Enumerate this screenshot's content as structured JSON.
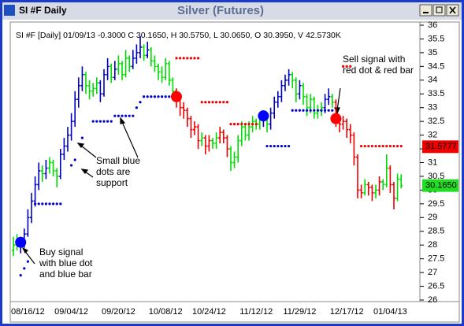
{
  "window_title": "SI #F Daily",
  "chart_data": {
    "type": "ohlc",
    "title": "Silver (Futures)",
    "info": "SI #F [Daily] 01/09/13 -0.3000 C 30.1650, H 30.5750, L 30.0650, O 30.3950, V 42.5730K",
    "ylim": [
      26,
      36
    ],
    "yticks": [
      26,
      26.5,
      27,
      27.5,
      28,
      28.5,
      29,
      29.5,
      30,
      30.5,
      31,
      31.5,
      32,
      32.5,
      33,
      33.5,
      34,
      34.5,
      35,
      35.5,
      36
    ],
    "grid": false,
    "categories": [
      null,
      null,
      null,
      null,
      "08/16/12",
      null,
      null,
      null,
      null,
      null,
      null,
      null,
      null,
      null,
      null,
      null,
      "09/04/12",
      null,
      null,
      null,
      null,
      null,
      null,
      null,
      null,
      null,
      null,
      null,
      null,
      "09/20/12",
      null,
      null,
      null,
      null,
      null,
      null,
      null,
      null,
      null,
      null,
      null,
      null,
      "10/08/12",
      null,
      null,
      null,
      null,
      null,
      null,
      null,
      null,
      null,
      null,
      null,
      "10/24/12",
      null,
      null,
      null,
      null,
      null,
      null,
      null,
      null,
      null,
      null,
      null,
      null,
      "11/12/12",
      null,
      null,
      null,
      null,
      null,
      null,
      null,
      null,
      null,
      null,
      null,
      "11/29/12",
      null,
      null,
      null,
      null,
      null,
      null,
      null,
      null,
      null,
      null,
      null,
      null,
      "12/17/12",
      null,
      null,
      null,
      null,
      null,
      null,
      null,
      null,
      null,
      null,
      null,
      "01/04/13",
      null,
      null,
      null
    ],
    "ohlc": [
      [
        27.8,
        28.3,
        27.6,
        28.0
      ],
      [
        28.0,
        28.4,
        27.8,
        28.1
      ],
      [
        28.1,
        28.3,
        27.7,
        28.0
      ],
      [
        28.0,
        28.6,
        27.9,
        28.4
      ],
      [
        28.4,
        29.3,
        28.3,
        29.0
      ],
      [
        29.0,
        29.9,
        28.8,
        29.6
      ],
      [
        29.6,
        30.5,
        29.4,
        30.2
      ],
      [
        30.2,
        31.0,
        30.0,
        30.7
      ],
      [
        30.7,
        30.9,
        30.3,
        30.6
      ],
      [
        30.6,
        31.1,
        30.4,
        30.8
      ],
      [
        30.8,
        31.2,
        30.6,
        31.0
      ],
      [
        31.0,
        31.1,
        30.5,
        30.7
      ],
      [
        30.7,
        30.8,
        30.1,
        30.5
      ],
      [
        30.5,
        31.5,
        30.4,
        31.3
      ],
      [
        31.3,
        31.9,
        31.1,
        31.6
      ],
      [
        31.6,
        32.3,
        31.4,
        32.0
      ],
      [
        32.0,
        32.8,
        31.8,
        32.5
      ],
      [
        32.5,
        33.6,
        32.3,
        33.3
      ],
      [
        33.3,
        34.1,
        33.0,
        33.8
      ],
      [
        33.8,
        34.5,
        33.6,
        34.2
      ],
      [
        34.2,
        34.3,
        33.5,
        33.8
      ],
      [
        33.8,
        34.0,
        33.3,
        33.6
      ],
      [
        33.6,
        33.9,
        33.4,
        33.7
      ],
      [
        33.7,
        34.1,
        33.5,
        33.9
      ],
      [
        33.9,
        34.0,
        33.2,
        33.5
      ],
      [
        33.5,
        34.4,
        33.4,
        34.2
      ],
      [
        34.2,
        34.8,
        34.0,
        34.5
      ],
      [
        34.5,
        34.6,
        33.9,
        34.1
      ],
      [
        34.1,
        34.7,
        34.0,
        34.4
      ],
      [
        34.4,
        34.9,
        34.2,
        34.6
      ],
      [
        34.6,
        34.7,
        34.0,
        34.2
      ],
      [
        34.2,
        35.1,
        34.1,
        34.8
      ],
      [
        34.8,
        34.9,
        34.3,
        34.5
      ],
      [
        34.5,
        35.1,
        34.4,
        34.8
      ],
      [
        34.8,
        35.3,
        34.6,
        35.0
      ],
      [
        35.0,
        35.6,
        34.8,
        35.2
      ],
      [
        35.2,
        35.3,
        34.7,
        34.9
      ],
      [
        34.9,
        35.4,
        34.8,
        35.1
      ],
      [
        35.1,
        35.2,
        34.5,
        34.7
      ],
      [
        34.7,
        34.9,
        34.3,
        34.5
      ],
      [
        34.5,
        34.6,
        34.0,
        34.3
      ],
      [
        34.3,
        34.5,
        33.9,
        34.1
      ],
      [
        34.1,
        34.8,
        34.0,
        34.6
      ],
      [
        34.6,
        34.7,
        33.8,
        34.0
      ],
      [
        34.0,
        34.1,
        33.4,
        33.6
      ],
      [
        33.6,
        33.7,
        33.0,
        33.3
      ],
      [
        33.3,
        33.4,
        32.7,
        33.0
      ],
      [
        33.0,
        33.2,
        32.6,
        32.9
      ],
      [
        32.9,
        33.0,
        32.3,
        32.6
      ],
      [
        32.6,
        32.7,
        31.9,
        32.2
      ],
      [
        32.2,
        32.5,
        32.0,
        32.3
      ],
      [
        32.3,
        32.4,
        31.5,
        31.8
      ],
      [
        31.8,
        32.1,
        31.6,
        31.9
      ],
      [
        31.9,
        32.0,
        31.3,
        31.6
      ],
      [
        31.6,
        32.0,
        31.4,
        31.8
      ],
      [
        31.8,
        31.9,
        31.5,
        31.7
      ],
      [
        31.7,
        32.1,
        31.5,
        31.9
      ],
      [
        31.9,
        32.3,
        31.7,
        32.1
      ],
      [
        32.1,
        32.2,
        31.7,
        31.9
      ],
      [
        31.9,
        32.0,
        31.2,
        31.5
      ],
      [
        31.5,
        31.6,
        30.7,
        31.0
      ],
      [
        31.0,
        31.4,
        30.8,
        31.2
      ],
      [
        31.2,
        32.0,
        31.0,
        31.8
      ],
      [
        31.8,
        32.5,
        31.6,
        32.3
      ],
      [
        32.3,
        32.4,
        31.8,
        32.0
      ],
      [
        32.0,
        32.5,
        31.8,
        32.3
      ],
      [
        32.3,
        32.7,
        32.1,
        32.5
      ],
      [
        32.5,
        32.6,
        32.2,
        32.4
      ],
      [
        32.4,
        32.8,
        32.2,
        32.6
      ],
      [
        32.6,
        32.9,
        32.3,
        32.6
      ],
      [
        32.6,
        32.7,
        32.1,
        32.4
      ],
      [
        32.4,
        33.0,
        32.2,
        32.8
      ],
      [
        32.8,
        33.4,
        32.6,
        33.2
      ],
      [
        33.2,
        33.6,
        33.0,
        33.4
      ],
      [
        33.4,
        34.0,
        33.2,
        33.8
      ],
      [
        33.8,
        34.2,
        33.6,
        34.0
      ],
      [
        34.0,
        34.4,
        33.8,
        34.2
      ],
      [
        34.2,
        34.3,
        33.7,
        34.0
      ],
      [
        34.0,
        34.1,
        33.2,
        33.5
      ],
      [
        33.5,
        34.0,
        33.3,
        33.8
      ],
      [
        33.8,
        33.9,
        33.1,
        33.4
      ],
      [
        33.4,
        33.5,
        32.7,
        33.0
      ],
      [
        33.0,
        33.5,
        32.8,
        33.3
      ],
      [
        33.3,
        33.4,
        32.6,
        32.8
      ],
      [
        32.8,
        33.1,
        32.6,
        32.9
      ],
      [
        32.9,
        33.2,
        32.7,
        33.0
      ],
      [
        33.0,
        33.5,
        32.8,
        33.3
      ],
      [
        33.3,
        33.7,
        33.1,
        33.4
      ],
      [
        33.4,
        33.5,
        33.0,
        33.2
      ],
      [
        33.2,
        33.3,
        32.3,
        32.6
      ],
      [
        32.6,
        32.7,
        32.1,
        32.4
      ],
      [
        32.4,
        32.7,
        32.2,
        32.5
      ],
      [
        32.5,
        32.6,
        31.9,
        32.2
      ],
      [
        32.2,
        32.4,
        31.7,
        32.0
      ],
      [
        32.0,
        32.1,
        30.9,
        31.2
      ],
      [
        31.2,
        31.3,
        29.7,
        30.0
      ],
      [
        30.0,
        30.2,
        29.7,
        29.9
      ],
      [
        29.9,
        30.4,
        29.8,
        30.2
      ],
      [
        30.2,
        30.3,
        29.8,
        30.1
      ],
      [
        30.1,
        30.2,
        29.6,
        29.9
      ],
      [
        29.9,
        30.2,
        29.7,
        30.0
      ],
      [
        30.0,
        30.5,
        29.8,
        30.3
      ],
      [
        30.3,
        30.4,
        30.0,
        30.2
      ],
      [
        30.2,
        31.3,
        30.1,
        30.8
      ],
      [
        30.8,
        30.9,
        29.9,
        30.2
      ],
      [
        30.2,
        30.3,
        29.3,
        29.7
      ],
      [
        29.7,
        30.6,
        29.6,
        30.4
      ],
      [
        30.395,
        30.575,
        30.065,
        30.165
      ]
    ],
    "bar_colors": [
      "#0d0",
      "#0d0",
      "#00b",
      "#00b",
      "#00b",
      "#00b",
      "#00b",
      "#00b",
      "#0d0",
      "#00b",
      "#0d0",
      "#0d0",
      "#0d0",
      "#00b",
      "#00b",
      "#00b",
      "#00b",
      "#00b",
      "#00b",
      "#00b",
      "#0d0",
      "#0d0",
      "#0d0",
      "#0d0",
      "#00b",
      "#00b",
      "#00b",
      "#0d0",
      "#00b",
      "#0d0",
      "#0d0",
      "#0d0",
      "#0d0",
      "#00b",
      "#00b",
      "#00b",
      "#0d0",
      "#00b",
      "#0d0",
      "#0d0",
      "#0d0",
      "#0d0",
      "#0d0",
      "#0d0",
      "#0d0",
      "#e00",
      "#e00",
      "#e00",
      "#e00",
      "#e00",
      "#e00",
      "#e00",
      "#0d0",
      "#e00",
      "#e00",
      "#0d0",
      "#0d0",
      "#e00",
      "#e00",
      "#e00",
      "#0d0",
      "#0d0",
      "#0d0",
      "#0d0",
      "#0d0",
      "#0d0",
      "#0d0",
      "#0d0",
      "#0d0",
      "#00b",
      "#0d0",
      "#00b",
      "#00b",
      "#00b",
      "#00b",
      "#00b",
      "#00b",
      "#0d0",
      "#0d0",
      "#00b",
      "#0d0",
      "#0d0",
      "#0d0",
      "#0d0",
      "#0d0",
      "#0d0",
      "#00b",
      "#00b",
      "#0d0",
      "#e00",
      "#e00",
      "#e00",
      "#e00",
      "#e00",
      "#e00",
      "#e00",
      "#e00",
      "#0d0",
      "#e00",
      "#e00",
      "#0d0",
      "#e00",
      "#0d0",
      "#0d0",
      "#e00",
      "#e00",
      "#0d0",
      "#0d0"
    ],
    "support_dots": {
      "color": "#0000cc",
      "values": [
        null,
        null,
        26.9,
        27.15,
        27.4,
        null,
        29.5,
        29.5,
        29.5,
        29.5,
        29.5,
        29.5,
        29.5,
        29.5,
        null,
        null,
        30.9,
        31.1,
        null,
        31.9,
        null,
        null,
        32.5,
        32.5,
        32.5,
        32.5,
        32.5,
        32.5,
        32.7,
        32.7,
        32.7,
        32.7,
        32.7,
        32.7,
        33.0,
        33.2,
        33.4,
        33.4,
        33.4,
        33.4,
        33.4,
        33.4,
        33.4,
        33.4,
        33.4,
        null,
        null,
        null,
        null,
        null,
        null,
        null,
        null,
        null,
        null,
        null,
        null,
        null,
        null,
        null,
        null,
        null,
        null,
        null,
        null,
        null,
        null,
        null,
        null,
        null,
        31.6,
        31.6,
        31.6,
        31.6,
        31.6,
        31.6,
        31.6,
        32.9,
        32.9,
        32.9,
        32.9,
        32.9,
        32.9,
        32.9,
        32.9,
        32.9,
        32.9,
        32.9,
        32.9,
        null,
        null,
        null,
        null,
        null,
        null,
        null,
        null,
        null,
        null,
        null,
        null,
        null,
        null,
        null,
        null,
        null,
        null,
        null
      ]
    },
    "resistance_dots": {
      "color": "#ee0000",
      "values": [
        null,
        null,
        null,
        null,
        null,
        null,
        null,
        null,
        null,
        null,
        null,
        null,
        null,
        null,
        null,
        null,
        null,
        null,
        null,
        null,
        null,
        null,
        null,
        null,
        null,
        null,
        null,
        null,
        null,
        null,
        null,
        null,
        null,
        null,
        null,
        null,
        null,
        null,
        null,
        null,
        null,
        null,
        null,
        null,
        null,
        34.8,
        34.8,
        34.8,
        34.8,
        34.8,
        34.8,
        34.8,
        33.2,
        33.2,
        33.2,
        33.2,
        33.2,
        33.2,
        33.2,
        33.2,
        32.4,
        32.4,
        32.4,
        32.4,
        32.4,
        32.4,
        32.4,
        32.4,
        null,
        null,
        null,
        null,
        null,
        null,
        null,
        null,
        null,
        null,
        null,
        null,
        null,
        null,
        null,
        null,
        null,
        null,
        null,
        null,
        null,
        null,
        null,
        34.5,
        34.5,
        34.5,
        null,
        null,
        31.6,
        31.6,
        31.6,
        31.6,
        31.6,
        31.6,
        31.6,
        31.6,
        31.6,
        31.6,
        31.6,
        31.6
      ]
    },
    "buy_signals": {
      "color": "#0000ff",
      "values": [
        null,
        null,
        28.1,
        null,
        null,
        null,
        null,
        null,
        null,
        null,
        null,
        null,
        null,
        null,
        null,
        null,
        null,
        null,
        null,
        null,
        null,
        null,
        null,
        null,
        null,
        null,
        null,
        null,
        null,
        null,
        null,
        null,
        null,
        null,
        null,
        null,
        null,
        null,
        null,
        null,
        null,
        null,
        null,
        null,
        null,
        null,
        null,
        null,
        null,
        null,
        null,
        null,
        null,
        null,
        null,
        null,
        null,
        null,
        null,
        null,
        null,
        null,
        null,
        null,
        null,
        null,
        null,
        null,
        null,
        32.7,
        null,
        null,
        null,
        null,
        null,
        null,
        null,
        null,
        null,
        null,
        null,
        null,
        null,
        null,
        null,
        null,
        null,
        null,
        null,
        null,
        null,
        null,
        null,
        null,
        null,
        null,
        null,
        null,
        null,
        null,
        null,
        null,
        null,
        null,
        null,
        null,
        null,
        null
      ]
    },
    "sell_signals": {
      "color": "#ff0000",
      "values": [
        null,
        null,
        null,
        null,
        null,
        null,
        null,
        null,
        null,
        null,
        null,
        null,
        null,
        null,
        null,
        null,
        null,
        null,
        null,
        null,
        null,
        null,
        null,
        null,
        null,
        null,
        null,
        null,
        null,
        null,
        null,
        null,
        null,
        null,
        null,
        null,
        null,
        null,
        null,
        null,
        null,
        null,
        null,
        null,
        null,
        33.4,
        null,
        null,
        null,
        null,
        null,
        null,
        null,
        null,
        null,
        null,
        null,
        null,
        null,
        null,
        null,
        null,
        null,
        null,
        null,
        null,
        null,
        null,
        null,
        null,
        null,
        null,
        null,
        null,
        null,
        null,
        null,
        null,
        null,
        null,
        null,
        null,
        null,
        null,
        null,
        null,
        null,
        null,
        null,
        32.6,
        null,
        null,
        null,
        null,
        null,
        null,
        null,
        null,
        null,
        null,
        null,
        null,
        null,
        null,
        null,
        null,
        null,
        null
      ]
    },
    "last_labels": [
      {
        "value": 31.5777,
        "color": "#ee0000"
      },
      {
        "value": 30.165,
        "label": "30.1650",
        "color": "#22dd22"
      }
    ],
    "annotations": [
      {
        "lines": [
          "Buy signal",
          "with blue dot",
          "and blue bar"
        ]
      },
      {
        "lines": [
          "Small blue",
          "dots are",
          "support"
        ]
      },
      {
        "lines": [
          "Sell signal with",
          "red dot & red bar"
        ]
      }
    ]
  }
}
